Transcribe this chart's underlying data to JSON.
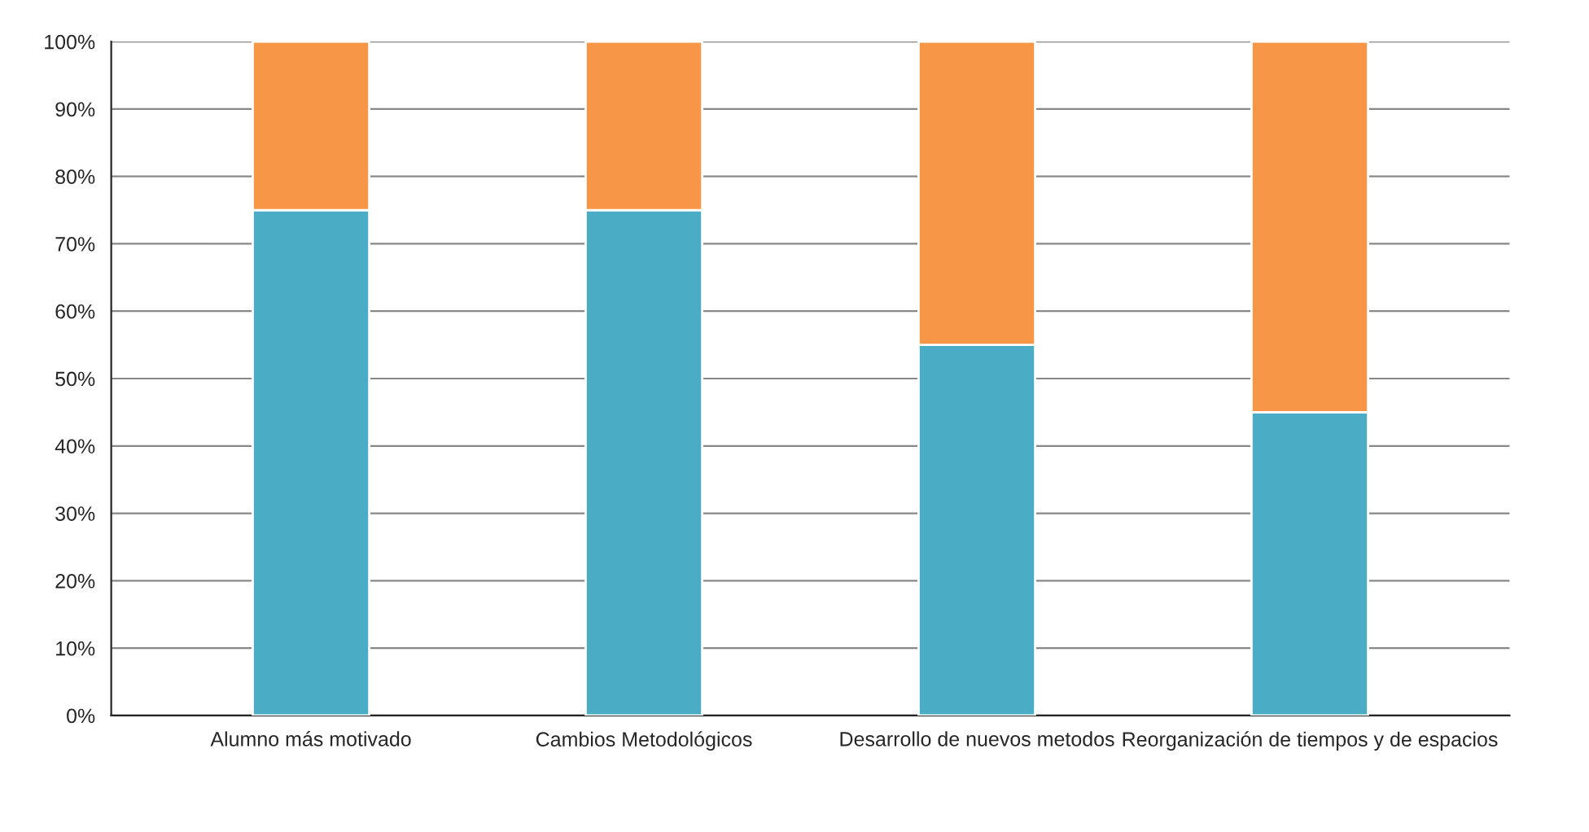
{
  "chart_data": {
    "type": "bar",
    "stacked": true,
    "categories": [
      "Alumno más motivado",
      "Cambios Metodológicos",
      "Desarrollo de nuevos metodos",
      "Reorganización de tiempos y de espacios"
    ],
    "series": [
      {
        "color": "#4bacc6",
        "values": [
          75,
          75,
          55,
          45
        ]
      },
      {
        "color": "#f79646",
        "values": [
          25,
          25,
          45,
          55
        ]
      }
    ],
    "ylim": [
      0,
      100
    ],
    "yticks": [
      {
        "value": 0,
        "label": "0%"
      },
      {
        "value": 10,
        "label": "10%"
      },
      {
        "value": 20,
        "label": "20%"
      },
      {
        "value": 30,
        "label": "30%"
      },
      {
        "value": 40,
        "label": "40%"
      },
      {
        "value": 50,
        "label": "50%"
      },
      {
        "value": 60,
        "label": "60%"
      },
      {
        "value": 70,
        "label": "70%"
      },
      {
        "value": 80,
        "label": "80%"
      },
      {
        "value": 90,
        "label": "90%"
      },
      {
        "value": 100,
        "label": "100%"
      }
    ],
    "grid": "y"
  }
}
